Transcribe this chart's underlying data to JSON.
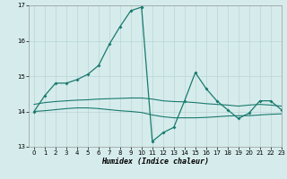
{
  "xlabel": "Humidex (Indice chaleur)",
  "xlim": [
    -0.5,
    23
  ],
  "ylim": [
    13,
    17
  ],
  "yticks": [
    13,
    14,
    15,
    16,
    17
  ],
  "xticks": [
    0,
    1,
    2,
    3,
    4,
    5,
    6,
    7,
    8,
    9,
    10,
    11,
    12,
    13,
    14,
    15,
    16,
    17,
    18,
    19,
    20,
    21,
    22,
    23
  ],
  "bg_color": "#d6ecec",
  "line_color": "#1a7a6e",
  "grid_color": "#b8d4d4",
  "lines": [
    {
      "x": [
        0,
        1,
        2,
        3,
        4,
        5,
        6,
        7,
        8,
        9,
        10
      ],
      "y": [
        14.0,
        14.45,
        14.8,
        14.8,
        14.9,
        15.05,
        15.3,
        15.9,
        16.4,
        16.85,
        16.95
      ]
    },
    {
      "x": [
        10,
        11,
        12,
        13,
        14,
        15,
        16,
        17,
        18,
        19,
        20,
        21,
        22,
        23
      ],
      "y": [
        16.95,
        13.15,
        13.4,
        13.55,
        14.3,
        15.1,
        14.65,
        14.3,
        14.05,
        13.8,
        13.95,
        14.3,
        14.3,
        14.05
      ]
    },
    {
      "x": [
        0,
        1,
        2,
        3,
        4,
        5,
        6,
        7,
        8,
        9,
        10,
        11,
        12,
        13,
        14,
        15,
        16,
        17,
        18,
        19,
        20,
        21,
        22,
        23
      ],
      "y": [
        14.2,
        14.25,
        14.28,
        14.3,
        14.32,
        14.33,
        14.35,
        14.36,
        14.37,
        14.38,
        14.38,
        14.35,
        14.3,
        14.28,
        14.27,
        14.25,
        14.22,
        14.2,
        14.18,
        14.15,
        14.18,
        14.2,
        14.18,
        14.15
      ]
    },
    {
      "x": [
        0,
        1,
        2,
        3,
        4,
        5,
        6,
        7,
        8,
        9,
        10,
        11,
        12,
        13,
        14,
        15,
        16,
        17,
        18,
        19,
        20,
        21,
        22,
        23
      ],
      "y": [
        14.0,
        14.02,
        14.05,
        14.08,
        14.1,
        14.1,
        14.08,
        14.05,
        14.02,
        14.0,
        13.97,
        13.9,
        13.85,
        13.82,
        13.82,
        13.82,
        13.83,
        13.85,
        13.87,
        13.88,
        13.88,
        13.9,
        13.92,
        13.93
      ]
    }
  ]
}
